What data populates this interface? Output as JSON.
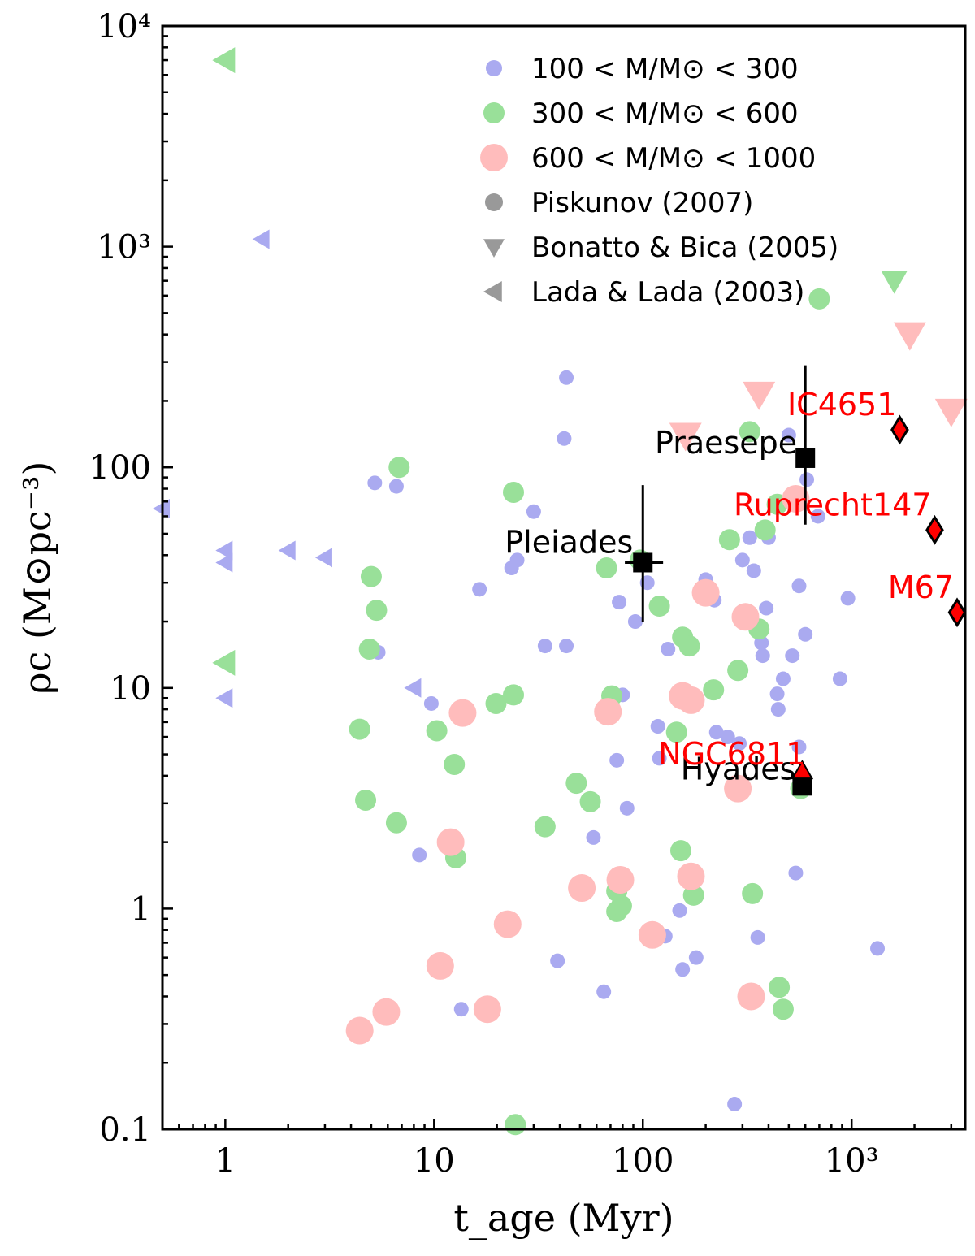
{
  "chart_data": {
    "type": "scatter",
    "title": "",
    "xlabel": "t_age (Myr)",
    "ylabel": "ρc (M⊙pc⁻³)",
    "xscale": "log",
    "yscale": "log",
    "xlim": [
      0.5,
      3500
    ],
    "ylim": [
      0.1,
      10000
    ],
    "x_ticks": [
      {
        "value": 1,
        "label": "1"
      },
      {
        "value": 10,
        "label": "10"
      },
      {
        "value": 100,
        "label": "100"
      },
      {
        "value": 1000,
        "label": "10³"
      }
    ],
    "y_ticks": [
      {
        "value": 0.1,
        "label": "0.1"
      },
      {
        "value": 1,
        "label": "1"
      },
      {
        "value": 10,
        "label": "10"
      },
      {
        "value": 100,
        "label": "100"
      },
      {
        "value": 1000,
        "label": "10³"
      },
      {
        "value": 10000,
        "label": "10⁴"
      }
    ],
    "legend_position": "top-right",
    "legend": [
      {
        "label": "100 < M/M⊙ < 300",
        "marker": "circle",
        "color": "#aaaaf0",
        "size": "small"
      },
      {
        "label": "300 < M/M⊙ < 600",
        "marker": "circle",
        "color": "#99e099",
        "size": "medium"
      },
      {
        "label": "600 < M/M⊙ < 1000",
        "marker": "circle",
        "color": "#ffbcbc",
        "size": "large"
      },
      {
        "label": "Piskunov (2007)",
        "marker": "circle",
        "color": "#999999"
      },
      {
        "label": "Bonatto & Bica (2005)",
        "marker": "triangle-down",
        "color": "#999999"
      },
      {
        "label": "Lada & Lada (2003)",
        "marker": "triangle-left",
        "color": "#999999"
      }
    ],
    "series": [
      {
        "name": "100 < M/M⊙ < 300 — Piskunov (2007)",
        "marker": "circle",
        "color": "#aaaaf0",
        "points": [
          [
            5.2,
            85
          ],
          [
            6.6,
            82
          ],
          [
            5.4,
            14.5
          ],
          [
            9.7,
            8.5
          ],
          [
            8.5,
            1.75
          ],
          [
            13.5,
            0.35
          ],
          [
            16.5,
            28
          ],
          [
            23.5,
            35
          ],
          [
            25,
            38
          ],
          [
            30,
            63
          ],
          [
            34,
            15.5
          ],
          [
            39,
            0.58
          ],
          [
            42,
            135
          ],
          [
            43,
            255
          ],
          [
            43,
            15.5
          ],
          [
            58,
            2.1
          ],
          [
            65,
            0.42
          ],
          [
            75,
            4.7
          ],
          [
            77,
            24.5
          ],
          [
            80,
            9.3
          ],
          [
            84,
            2.85
          ],
          [
            92,
            20
          ],
          [
            105,
            30
          ],
          [
            118,
            6.7
          ],
          [
            120,
            4.8
          ],
          [
            128,
            0.75
          ],
          [
            132,
            15
          ],
          [
            150,
            0.98
          ],
          [
            155,
            0.53
          ],
          [
            180,
            0.6
          ],
          [
            200,
            31
          ],
          [
            220,
            25
          ],
          [
            225,
            6.3
          ],
          [
            255,
            6
          ],
          [
            275,
            0.13
          ],
          [
            290,
            5.6
          ],
          [
            300,
            38
          ],
          [
            325,
            48
          ],
          [
            340,
            34
          ],
          [
            355,
            0.74
          ],
          [
            370,
            16
          ],
          [
            375,
            14
          ],
          [
            390,
            23
          ],
          [
            400,
            48
          ],
          [
            440,
            9.4
          ],
          [
            445,
            8
          ],
          [
            470,
            11
          ],
          [
            520,
            14
          ],
          [
            540,
            1.45
          ],
          [
            560,
            29
          ],
          [
            600,
            17.5
          ],
          [
            610,
            88
          ],
          [
            690,
            60
          ],
          [
            880,
            11
          ],
          [
            960,
            25.5
          ],
          [
            1330,
            0.66
          ],
          [
            500,
            140
          ],
          [
            560,
            5.4
          ]
        ]
      },
      {
        "name": "300 < M/M⊙ < 600 — Piskunov (2007)",
        "marker": "circle",
        "color": "#99e099",
        "points": [
          [
            4.4,
            6.5
          ],
          [
            4.7,
            3.1
          ],
          [
            5,
            32
          ],
          [
            4.9,
            15
          ],
          [
            5.3,
            22.5
          ],
          [
            6.6,
            2.45
          ],
          [
            6.8,
            100
          ],
          [
            10.3,
            6.4
          ],
          [
            12.5,
            4.5
          ],
          [
            12.7,
            1.7
          ],
          [
            19.8,
            8.5
          ],
          [
            24,
            9.3
          ],
          [
            24,
            77
          ],
          [
            24.5,
            0.105
          ],
          [
            34,
            2.35
          ],
          [
            48,
            3.7
          ],
          [
            56,
            3.05
          ],
          [
            67,
            35
          ],
          [
            71,
            9.2
          ],
          [
            75,
            0.97
          ],
          [
            75,
            1.2
          ],
          [
            79,
            1.03
          ],
          [
            97,
            38
          ],
          [
            120,
            23.5
          ],
          [
            145,
            6.3
          ],
          [
            152,
            1.83
          ],
          [
            155,
            17
          ],
          [
            167,
            15.5
          ],
          [
            175,
            1.15
          ],
          [
            218,
            9.8
          ],
          [
            260,
            47
          ],
          [
            285,
            12
          ],
          [
            335,
            1.17
          ],
          [
            325,
            145
          ],
          [
            360,
            18.5
          ],
          [
            385,
            52
          ],
          [
            450,
            0.44
          ],
          [
            470,
            0.35
          ],
          [
            570,
            3.5
          ],
          [
            440,
            68
          ],
          [
            700,
            580
          ]
        ]
      },
      {
        "name": "600 < M/M⊙ < 1000 — Piskunov (2007)",
        "marker": "circle",
        "color": "#ffbcbc",
        "points": [
          [
            4.4,
            0.28
          ],
          [
            5.9,
            0.34
          ],
          [
            10.7,
            0.55
          ],
          [
            12,
            2
          ],
          [
            13.7,
            7.7
          ],
          [
            18,
            0.35
          ],
          [
            22.5,
            0.85
          ],
          [
            51,
            1.24
          ],
          [
            68,
            7.8
          ],
          [
            78,
            1.35
          ],
          [
            111,
            0.76
          ],
          [
            155,
            9.2
          ],
          [
            170,
            8.8
          ],
          [
            170,
            1.4
          ],
          [
            200,
            27
          ],
          [
            285,
            3.5
          ],
          [
            310,
            21
          ],
          [
            330,
            0.4
          ],
          [
            540,
            72
          ]
        ]
      },
      {
        "name": "100 < M/M⊙ < 300 — Lada & Lada (2003)",
        "marker": "triangle-left",
        "color": "#aaaaf0",
        "size": "small",
        "points": [
          [
            0.5,
            65
          ],
          [
            1,
            42
          ],
          [
            1,
            37
          ],
          [
            1,
            9
          ],
          [
            1.5,
            1080
          ],
          [
            2,
            42
          ],
          [
            3,
            39
          ],
          [
            8,
            10
          ]
        ]
      },
      {
        "name": "300 < M/M⊙ < 600 — Lada & Lada (2003)",
        "marker": "triangle-left",
        "color": "#99e099",
        "size": "medium",
        "points": [
          [
            1,
            7000
          ],
          [
            1,
            13
          ]
        ]
      },
      {
        "name": "300 < M/M⊙ < 600 — Bonatto & Bica (2005)",
        "marker": "triangle-down",
        "color": "#99e099",
        "size": "medium",
        "points": [
          [
            1600,
            700
          ]
        ]
      },
      {
        "name": "600 < M/M⊙ < 1000 — Bonatto & Bica (2005)",
        "marker": "triangle-down",
        "color": "#ffbcbc",
        "size": "large",
        "points": [
          [
            1900,
            400
          ],
          [
            360,
            215
          ],
          [
            160,
            140
          ],
          [
            3000,
            180
          ]
        ]
      }
    ],
    "reference_clusters": [
      {
        "name": "Pleiades",
        "x": 100,
        "y": 37,
        "y_err": [
          20,
          83
        ],
        "x_err": [
          82,
          125
        ],
        "marker": "square",
        "color": "#000000",
        "label_color": "#000000"
      },
      {
        "name": "Praesepe",
        "x": 600,
        "y": 110,
        "y_err": [
          55,
          290
        ],
        "marker": "square",
        "color": "#000000",
        "label_color": "#000000"
      },
      {
        "name": "Hyades",
        "x": 580,
        "y": 3.6,
        "marker": "square",
        "color": "#000000",
        "label_color": "#000000"
      },
      {
        "name": "NGC6811",
        "x": 580,
        "y": 4.2,
        "marker": "triangle-up",
        "color": "#ff0000",
        "label_color": "#ff0000"
      },
      {
        "name": "IC4651",
        "x": 1700,
        "y": 148,
        "marker": "diamond",
        "color": "#ff0000",
        "label_color": "#ff0000"
      },
      {
        "name": "Ruprecht147",
        "x": 2500,
        "y": 52,
        "marker": "diamond",
        "color": "#ff0000",
        "label_color": "#ff0000"
      },
      {
        "name": "M67",
        "x": 3200,
        "y": 22,
        "marker": "diamond",
        "color": "#ff0000",
        "label_color": "#ff0000"
      }
    ]
  }
}
